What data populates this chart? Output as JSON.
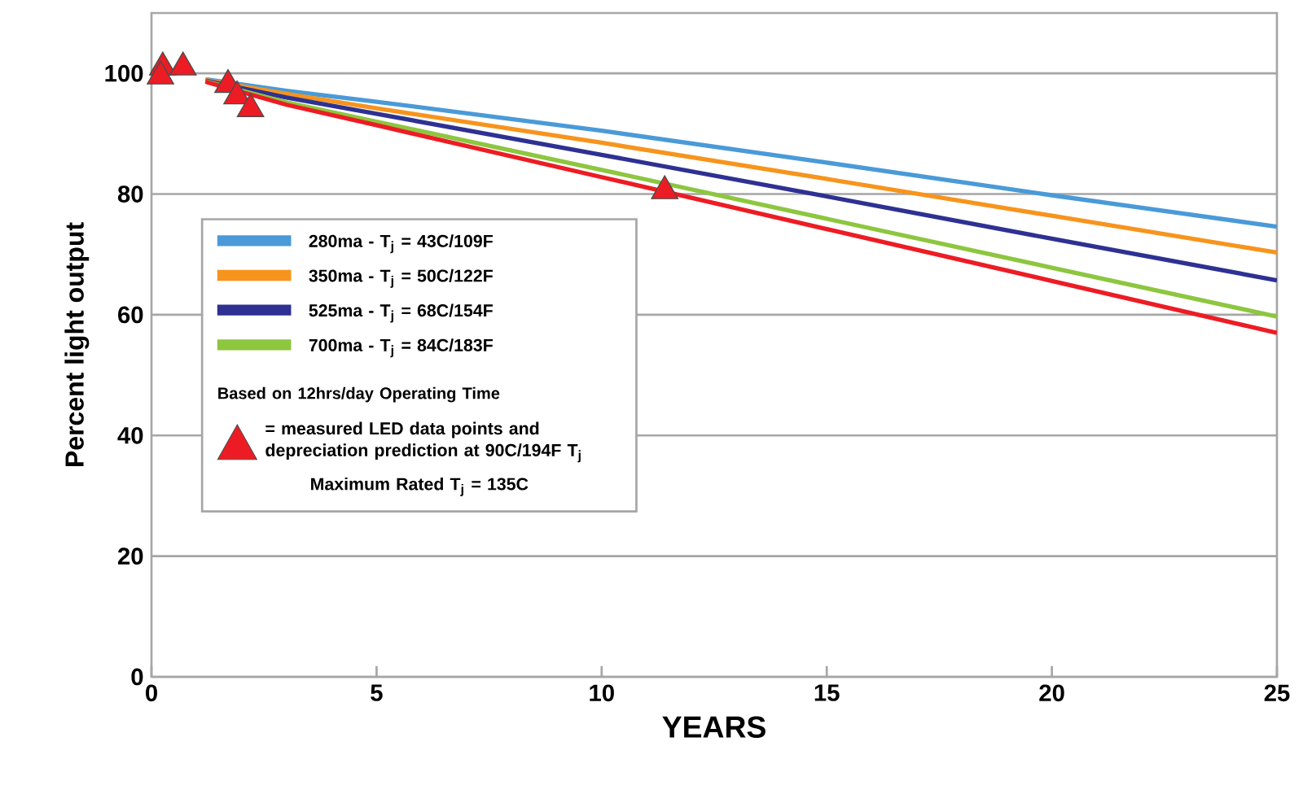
{
  "chart_data": {
    "type": "line",
    "xlabel": "YEARS",
    "ylabel": "Percent light output",
    "xlim": [
      0,
      25
    ],
    "ylim": [
      0,
      110
    ],
    "xticks": [
      0,
      5,
      10,
      15,
      20,
      25
    ],
    "yticks": [
      0,
      20,
      40,
      60,
      80,
      100
    ],
    "grid": "y",
    "legend": "left",
    "line_style": "solid",
    "marker": "none",
    "series": [
      {
        "name": "280ma - T$_{j}$ = 43C/109F",
        "color": "#4a9ad8",
        "x": [
          1.2,
          3,
          5,
          10,
          15,
          20,
          25
        ],
        "values": [
          99.0,
          97.1,
          95.3,
          90.5,
          85.2,
          79.8,
          74.6
        ]
      },
      {
        "name": "350ma - T$_{j}$ = 50C/122F",
        "color": "#f7941d",
        "x": [
          1.2,
          3,
          5,
          10,
          15,
          20,
          25
        ],
        "values": [
          98.9,
          96.6,
          94.2,
          88.5,
          82.5,
          76.4,
          70.3
        ]
      },
      {
        "name": "525ma - T$_{j}$ = 68C/154F",
        "color": "#2e3192",
        "x": [
          1.2,
          3,
          5,
          10,
          15,
          20,
          25
        ],
        "values": [
          98.8,
          96.0,
          93.3,
          86.5,
          79.6,
          72.6,
          65.7
        ]
      },
      {
        "name": "700ma - T$_{j}$ = 84C/183F",
        "color": "#8dc63f",
        "x": [
          1.2,
          3,
          5,
          10,
          15,
          20,
          25
        ],
        "values": [
          98.7,
          95.2,
          92,
          84,
          75.9,
          67.8,
          59.7
        ]
      },
      {
        "color": "#ed1c24",
        "x": [
          1.2,
          3,
          5,
          10,
          15,
          20,
          25
        ],
        "values": [
          98.6,
          94.8,
          91.4,
          82.8,
          74.2,
          65.6,
          57.0
        ]
      },
      {
        "type": "scatter",
        "marker": "triangle",
        "name": "= measured LED data points and depreciation prediction at 90C/194F T$_{j}$",
        "color": "#ed1c24",
        "x": [
          0.25,
          0.2,
          0.7,
          1.7,
          1.9,
          2.2,
          11.4
        ],
        "values": [
          101,
          99.5,
          101,
          98.1,
          96.2,
          94.1,
          80.5
        ]
      }
    ],
    "annotations": [
      "Based on 12hrs/day Operating Time",
      "Maximum Rated T$_{j}$ = 135C"
    ]
  }
}
